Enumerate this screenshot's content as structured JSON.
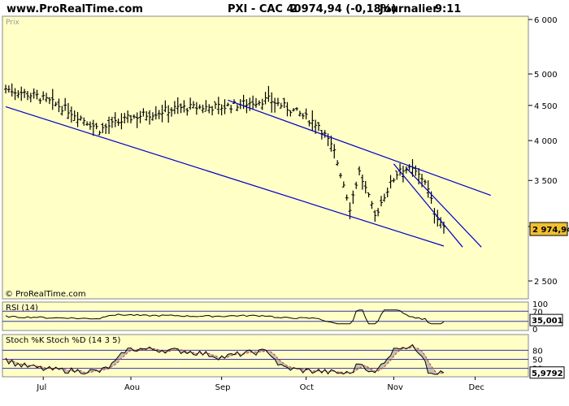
{
  "header": {
    "site": "www.ProRealTime.com",
    "instrument": "PXI - CAC 40",
    "quote": "2 974,94 (-0,18%)",
    "period": "Journalier",
    "time": "9:11"
  },
  "watermark": "© ProRealTime.com",
  "colors": {
    "panel_bg": "#FFFFC6",
    "channel": "#0000CC",
    "price_label_bg": "#F0C030",
    "stoch_k": "#000000",
    "stoch_d": "#CC3333",
    "fill_k_above": "#777799",
    "fill_d_above": "#F4A0A0",
    "hline": "#3333AA"
  },
  "chart_data": [
    {
      "type": "ohlc",
      "title": "Prix",
      "x_labels": [
        "Jul",
        "Aou",
        "Sep",
        "Oct",
        "Nov",
        "Dec"
      ],
      "y_scale": "log",
      "y_ticks": [
        "6 000",
        "5 000",
        "4 500",
        "4 000",
        "3 500",
        "3 000",
        "2 500"
      ],
      "last_value": "2 974,94",
      "series_anchor_closes": [
        [
          0,
          4760
        ],
        [
          10,
          4640
        ],
        [
          20,
          4430
        ],
        [
          30,
          4150
        ],
        [
          40,
          4320
        ],
        [
          55,
          4460
        ],
        [
          70,
          4480
        ],
        [
          84,
          4590
        ],
        [
          92,
          4420
        ],
        [
          100,
          4220
        ],
        [
          105,
          3850
        ],
        [
          110,
          3200
        ],
        [
          113,
          3600
        ],
        [
          118,
          3100
        ],
        [
          121,
          3330
        ],
        [
          126,
          3650
        ],
        [
          130,
          3620
        ],
        [
          134,
          3500
        ],
        [
          137,
          3150
        ],
        [
          140,
          3000
        ]
      ],
      "trend_channel": [
        {
          "from": [
            0,
            4480
          ],
          "to": [
            140,
            2810
          ]
        },
        {
          "from": [
            71,
            4580
          ],
          "to": [
            155,
            3330
          ]
        },
        {
          "from": [
            124,
            3700
          ],
          "to": [
            146,
            2800
          ]
        },
        {
          "from": [
            128,
            3650
          ],
          "to": [
            152,
            2800
          ]
        }
      ]
    },
    {
      "type": "line",
      "title": "RSI (14)",
      "y_ticks": [
        "100",
        "70",
        "30",
        "0"
      ],
      "ylim": [
        0,
        100
      ],
      "last_value": "35,001"
    },
    {
      "type": "line",
      "title": "Stoch %K",
      "subtitle": "Stoch %D (14 3 5)",
      "y_ticks": [
        "100",
        "80",
        "50",
        "20",
        "0"
      ],
      "ylim": [
        0,
        100
      ],
      "last_value": "5,9792"
    }
  ]
}
